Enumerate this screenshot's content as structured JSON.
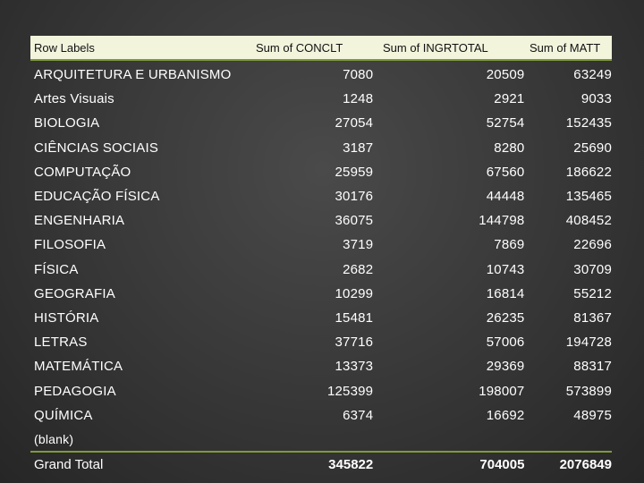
{
  "headers": {
    "row_labels": "Row Labels",
    "col1": "Sum of CONCLT",
    "col2": "Sum of INGRTOTAL",
    "col3": "Sum of MATT"
  },
  "rows": [
    {
      "label": "ARQUITETURA E URBANISMO",
      "conclt": "7080",
      "ingrtotal": "20509",
      "matt": "63249"
    },
    {
      "label": "Artes Visuais",
      "conclt": "1248",
      "ingrtotal": "2921",
      "matt": "9033"
    },
    {
      "label": "BIOLOGIA",
      "conclt": "27054",
      "ingrtotal": "52754",
      "matt": "152435"
    },
    {
      "label": "CIÊNCIAS SOCIAIS",
      "conclt": "3187",
      "ingrtotal": "8280",
      "matt": "25690"
    },
    {
      "label": "COMPUTAÇÃO",
      "conclt": "25959",
      "ingrtotal": "67560",
      "matt": "186622"
    },
    {
      "label": "EDUCAÇÃO FÍSICA",
      "conclt": "30176",
      "ingrtotal": "44448",
      "matt": "135465"
    },
    {
      "label": "ENGENHARIA",
      "conclt": "36075",
      "ingrtotal": "144798",
      "matt": "408452"
    },
    {
      "label": "FILOSOFIA",
      "conclt": "3719",
      "ingrtotal": "7869",
      "matt": "22696"
    },
    {
      "label": "FÍSICA",
      "conclt": "2682",
      "ingrtotal": "10743",
      "matt": "30709"
    },
    {
      "label": "GEOGRAFIA",
      "conclt": "10299",
      "ingrtotal": "16814",
      "matt": "55212"
    },
    {
      "label": "HISTÓRIA",
      "conclt": "15481",
      "ingrtotal": "26235",
      "matt": "81367"
    },
    {
      "label": "LETRAS",
      "conclt": "37716",
      "ingrtotal": "57006",
      "matt": "194728"
    },
    {
      "label": "MATEMÁTICA",
      "conclt": "13373",
      "ingrtotal": "29369",
      "matt": "88317"
    },
    {
      "label": "PEDAGOGIA",
      "conclt": "125399",
      "ingrtotal": "198007",
      "matt": "573899"
    },
    {
      "label": "QUÍMICA",
      "conclt": "6374",
      "ingrtotal": "16692",
      "matt": "48975"
    },
    {
      "label": "(blank)",
      "conclt": "",
      "ingrtotal": "",
      "matt": ""
    }
  ],
  "total": {
    "label": "Grand Total",
    "conclt": "345822",
    "ingrtotal": "704005",
    "matt": "2076849"
  },
  "colors": {
    "header_bg": "#f2f4dc",
    "accent_rule": "#7f9a3a",
    "text": "#ffffff"
  }
}
